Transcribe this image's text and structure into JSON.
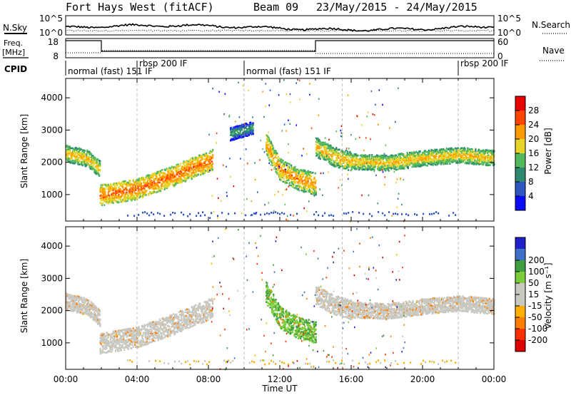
{
  "header": {
    "title": "Fort Hays West (fitACF)",
    "beam": "Beam 09",
    "date_range": "23/May/2015 - 24/May/2015"
  },
  "strips": {
    "nsky": {
      "label_left": "N.Sky",
      "label_right": "N.Search",
      "left_ticks": [
        "10^5",
        "10^0"
      ],
      "right_ticks": [
        "10^5",
        "10^0"
      ]
    },
    "freq": {
      "label_left_1": "Freq.",
      "label_left_2": "[MHz]",
      "label_right": "Nave",
      "left_ticks": [
        "18",
        "8"
      ],
      "right_ticks": [
        "60",
        "0"
      ]
    },
    "cpid": {
      "label": "CPID",
      "segments": [
        {
          "name": "normal (fast) 151 IF",
          "start": 0,
          "end": 4
        },
        {
          "name": "rbsp 200 IF",
          "start": 4,
          "end": 10
        },
        {
          "name": "normal (fast) 151 IF",
          "start": 10,
          "end": 22
        },
        {
          "name": "rbsp 200 IF",
          "start": 22,
          "end": 24
        }
      ]
    }
  },
  "colors": {
    "power": [
      "#0a0aff",
      "#2f56c0",
      "#2e8a6e",
      "#52b85e",
      "#e6d42a",
      "#ff9a00",
      "#ff4500",
      "#e80000"
    ],
    "velocity": [
      "#2020c8",
      "#3f70c8",
      "#3f9e3f",
      "#7ccc3c",
      "#c8c8c0",
      "#c8c8c0",
      "#ffb000",
      "#ff7f00",
      "#ff3000",
      "#dd0000"
    ]
  },
  "chart_data": [
    {
      "type": "heatmap",
      "panel": "power",
      "xlabel": "",
      "ylabel": "Slant Range [km]",
      "xlim": [
        0,
        24
      ],
      "ylim": [
        180,
        4600
      ],
      "yticks": [
        "1000",
        "2000",
        "3000",
        "4000"
      ],
      "colorbar": {
        "label": "Power [dB]",
        "ticks": [
          "4",
          "8",
          "12",
          "16",
          "20",
          "24",
          "28"
        ],
        "range": [
          0,
          32
        ]
      },
      "bands": [
        {
          "t": [
            0,
            1.2,
            1.9
          ],
          "r": [
            2300,
            2150,
            1800
          ],
          "w": 260,
          "v": 14
        },
        {
          "t": [
            1.9,
            4,
            6,
            8.2
          ],
          "r": [
            1000,
            1200,
            1600,
            2100
          ],
          "w": 320,
          "v": 18
        },
        {
          "t": [
            9.2,
            10.5
          ],
          "r": [
            2900,
            3100
          ],
          "w": 200,
          "v": 6
        },
        {
          "t": [
            11.2,
            12,
            13,
            14
          ],
          "r": [
            2600,
            1800,
            1500,
            1350
          ],
          "w": 340,
          "v": 16
        },
        {
          "t": [
            14,
            15,
            16
          ],
          "r": [
            2500,
            2200,
            2050
          ],
          "w": 300,
          "v": 14
        },
        {
          "t": [
            16,
            18,
            20,
            22,
            24
          ],
          "r": [
            2050,
            2000,
            2150,
            2250,
            2150
          ],
          "w": 240,
          "v": 14
        }
      ]
    },
    {
      "type": "heatmap",
      "panel": "velocity",
      "xlabel": "Time UT",
      "ylabel": "Slant Range [km]",
      "xlim": [
        0,
        24
      ],
      "ylim": [
        180,
        4600
      ],
      "xticks": [
        "00:00",
        "04:00",
        "08:00",
        "12:00",
        "16:00",
        "20:00",
        "00:00"
      ],
      "yticks": [
        "1000",
        "2000",
        "3000",
        "4000"
      ],
      "colorbar": {
        "label": "Velocity [m s⁻¹]",
        "ticks": [
          "200",
          "100",
          "50",
          "15",
          "-15",
          "-50",
          "-100",
          "-200"
        ]
      },
      "bands": [
        {
          "t": [
            0,
            1.2,
            1.9
          ],
          "r": [
            2300,
            2150,
            1800
          ],
          "w": 260,
          "v": 0
        },
        {
          "t": [
            1.9,
            4,
            6,
            8.2
          ],
          "r": [
            1000,
            1200,
            1600,
            2100
          ],
          "w": 320,
          "v": 0
        },
        {
          "t": [
            11.2,
            12,
            13,
            14
          ],
          "r": [
            2600,
            1800,
            1500,
            1350
          ],
          "w": 340,
          "v": 30
        },
        {
          "t": [
            14,
            15,
            16
          ],
          "r": [
            2500,
            2200,
            2050
          ],
          "w": 300,
          "v": 0
        },
        {
          "t": [
            16,
            18,
            20,
            22,
            24
          ],
          "r": [
            2050,
            2000,
            2150,
            2250,
            2150
          ],
          "w": 240,
          "v": 0
        }
      ]
    }
  ]
}
